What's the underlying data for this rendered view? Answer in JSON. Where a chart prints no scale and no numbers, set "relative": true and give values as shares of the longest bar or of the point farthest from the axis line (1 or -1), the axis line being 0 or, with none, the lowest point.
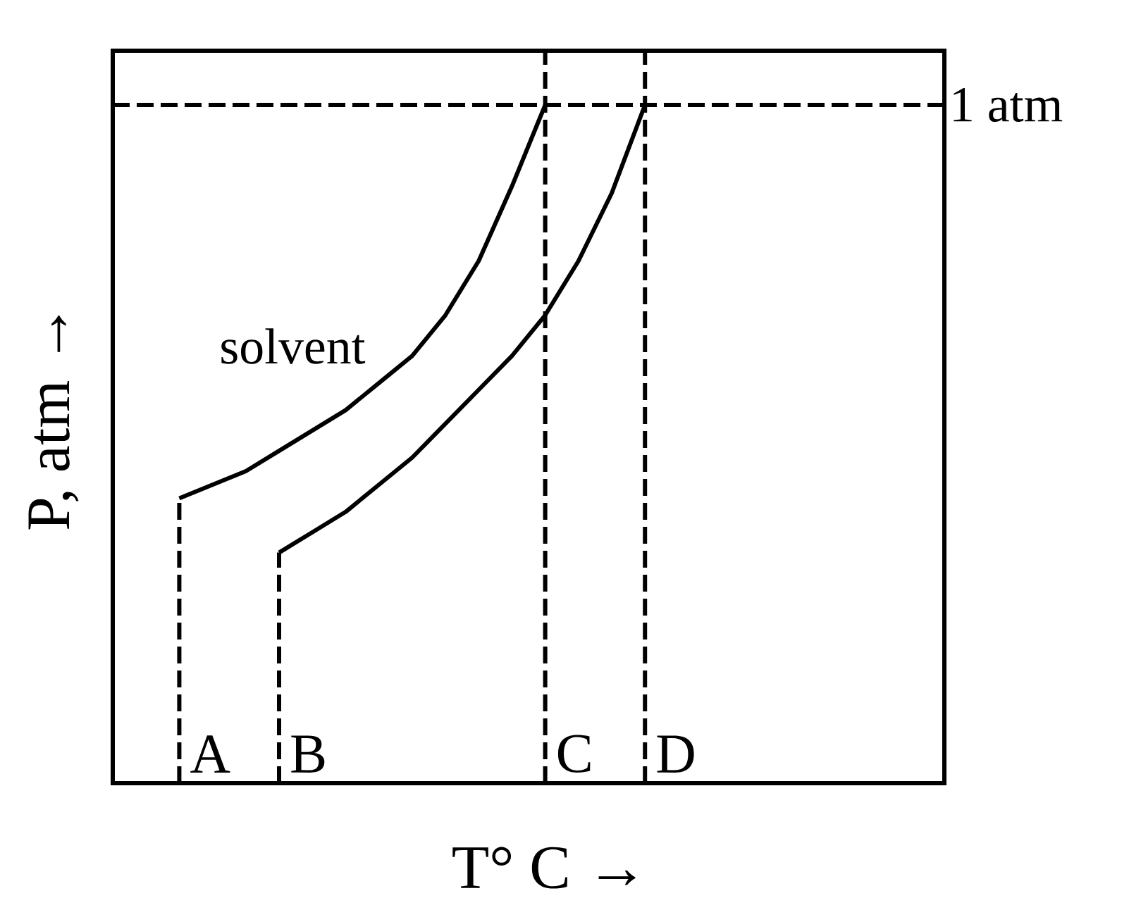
{
  "chart_data": {
    "type": "line",
    "relative": true,
    "xlabel": "T° C →",
    "ylabel": "P, atm →",
    "line_style": "solid",
    "categories": [
      null,
      null,
      null,
      null,
      null,
      null,
      null,
      null,
      null,
      null,
      null,
      null,
      null,
      null,
      null,
      null,
      null,
      null,
      null,
      null,
      null,
      null,
      null,
      null
    ],
    "series": [
      {
        "name": "solvent",
        "color": "#000000",
        "values": [
          null,
          0.42,
          0.44,
          0.46,
          0.49,
          0.52,
          0.55,
          0.59,
          0.63,
          0.69,
          0.77,
          0.88,
          1.0,
          null,
          null,
          null,
          null,
          null,
          null,
          null,
          null,
          null,
          null,
          null
        ]
      },
      {
        "color": "#000000",
        "values": [
          null,
          null,
          null,
          null,
          0.34,
          0.37,
          0.4,
          0.44,
          0.48,
          0.53,
          0.58,
          0.63,
          0.69,
          0.77,
          0.87,
          1.0,
          null,
          null,
          null,
          null,
          null,
          null,
          null,
          null
        ]
      }
    ],
    "annotations": [
      "1 atm",
      "A",
      "B",
      "C",
      "D"
    ]
  }
}
